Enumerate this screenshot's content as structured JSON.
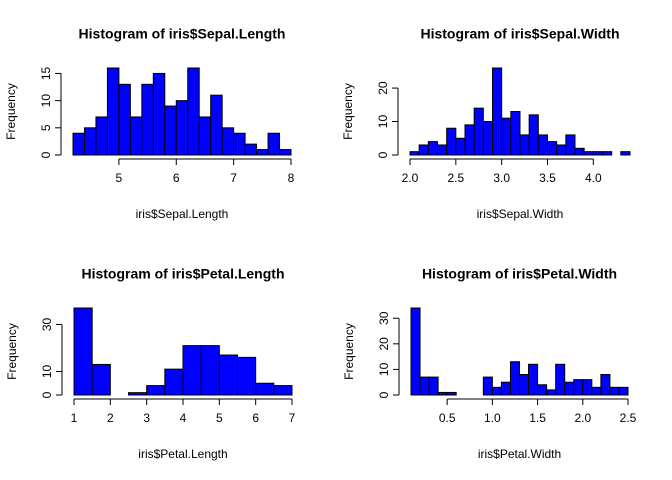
{
  "chart_data": [
    {
      "type": "histogram",
      "title": "Histogram of iris$Sepal.Length",
      "x_label": "iris$Sepal.Length",
      "y_label": "Frequency",
      "color": "#0000ff",
      "bins": [
        4.2,
        4.4,
        4.6,
        4.8,
        5.0,
        5.2,
        5.4,
        5.6,
        5.8,
        6.0,
        6.2,
        6.4,
        6.6,
        6.8,
        7.0,
        7.2,
        7.4,
        7.6,
        7.8,
        8.0
      ],
      "values": [
        4,
        5,
        7,
        16,
        13,
        7,
        13,
        15,
        9,
        10,
        16,
        7,
        11,
        5,
        4,
        2,
        1,
        4,
        1
      ],
      "xlim": [
        4.2,
        8
      ],
      "ylim": [
        0,
        16
      ],
      "xticks": [
        5,
        6,
        7,
        8
      ],
      "yticks": [
        0,
        5,
        10,
        15
      ]
    },
    {
      "type": "histogram",
      "title": "Histogram of iris$Sepal.Width",
      "x_label": "iris$Sepal.Width",
      "y_label": "Frequency",
      "color": "#0000ff",
      "bins": [
        2.0,
        2.1,
        2.2,
        2.3,
        2.4,
        2.5,
        2.6,
        2.7,
        2.8,
        2.9,
        3.0,
        3.1,
        3.2,
        3.3,
        3.4,
        3.5,
        3.6,
        3.7,
        3.8,
        3.9,
        4.0,
        4.1,
        4.2,
        4.3,
        4.4
      ],
      "values": [
        1,
        3,
        4,
        3,
        8,
        5,
        9,
        14,
        10,
        26,
        11,
        13,
        6,
        12,
        6,
        4,
        3,
        6,
        2,
        1,
        1,
        1,
        0,
        1
      ],
      "xlim": [
        2.0,
        4.4
      ],
      "ylim": [
        0,
        26
      ],
      "xticks": [
        {
          "value": 2,
          "label": "2.0"
        },
        2.5,
        {
          "value": 3,
          "label": "3.0"
        },
        3.5,
        {
          "value": 4,
          "label": "4.0"
        }
      ],
      "yticks": [
        0,
        10,
        20
      ]
    },
    {
      "type": "histogram",
      "title": "Histogram of iris$Petal.Length",
      "x_label": "iris$Petal.Length",
      "y_label": "Frequency",
      "color": "#0000ff",
      "bins": [
        1,
        1.5,
        2,
        2.5,
        3,
        3.5,
        4,
        4.5,
        5,
        5.5,
        6,
        6.5,
        7
      ],
      "values": [
        37,
        13,
        0,
        1,
        4,
        11,
        21,
        21,
        17,
        16,
        5,
        4
      ],
      "xlim": [
        1,
        7
      ],
      "ylim": [
        0,
        37
      ],
      "xticks": [
        1,
        2,
        3,
        4,
        5,
        6,
        7
      ],
      "yticks": [
        0,
        10,
        30
      ]
    },
    {
      "type": "histogram",
      "title": "Histogram of iris$Petal.Width",
      "x_label": "iris$Petal.Width",
      "y_label": "Frequency",
      "color": "#0000ff",
      "bins": [
        0.1,
        0.2,
        0.3,
        0.4,
        0.5,
        0.6,
        0.7,
        0.8,
        0.9,
        1.0,
        1.1,
        1.2,
        1.3,
        1.4,
        1.5,
        1.6,
        1.7,
        1.8,
        1.9,
        2.0,
        2.1,
        2.2,
        2.3,
        2.4,
        2.5
      ],
      "values": [
        34,
        7,
        7,
        1,
        1,
        0,
        0,
        0,
        7,
        3,
        5,
        13,
        8,
        12,
        4,
        2,
        12,
        5,
        6,
        6,
        3,
        8,
        3,
        3
      ],
      "xlim": [
        0.1,
        2.5
      ],
      "ylim": [
        0,
        34
      ],
      "xticks": [
        0.5,
        {
          "value": 1,
          "label": "1.0"
        },
        1.5,
        {
          "value": 2,
          "label": "2.0"
        },
        2.5
      ],
      "yticks": [
        0,
        10,
        20,
        30
      ]
    }
  ]
}
